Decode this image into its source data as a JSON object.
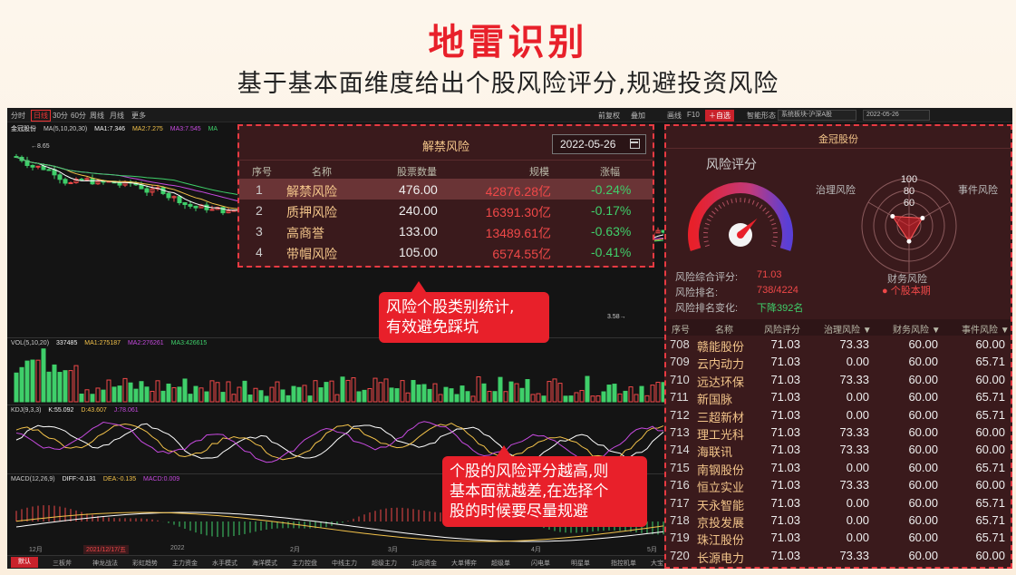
{
  "hero": {
    "title": "地雷识别",
    "subtitle": "基于基本面维度给出个股风险评分,规避投资风险"
  },
  "toolbar": {
    "left": [
      "分时",
      "日线",
      "30分",
      "60分",
      "周线",
      "月线",
      "更多"
    ],
    "active_index": 1,
    "right": [
      "前复权",
      "叠加",
      "画线",
      "F10",
      "自选",
      "智能形态"
    ],
    "board_select": "系统板块-沪深A股",
    "date": "2022-05-26"
  },
  "chart": {
    "stock_name": "金冠股份",
    "ma_legend": {
      "label": "MA(5,10,20,30)",
      "ma1": "MA1:7.346",
      "ma2": "MA2:7.275",
      "ma3": "MA3:7.545",
      "ma4": "MA"
    },
    "high_label": "8.65",
    "low_label": "3.58",
    "vol_legend": {
      "label": "VOL(5,10,20)",
      "value": "337485",
      "ma1": "MA1:275187",
      "ma2": "MA2:276261",
      "ma3": "MA3:426615"
    },
    "kdj_legend": {
      "label": "KDJ(9,3,3)",
      "k": "K:55.092",
      "d": "D:43.607",
      "j": "J:78.061"
    },
    "macd_legend": {
      "label": "MACD(12,26,9)",
      "diff": "DIFF:-0.131",
      "dea": "DEA:-0.135",
      "macd": "MACD:0.009"
    },
    "time_axis": [
      "12月",
      "2021/12/17/五",
      "2022",
      "2月",
      "3月",
      "4月",
      "5月"
    ],
    "colors": {
      "up": "#ef4848",
      "down": "#3fcf6a",
      "ma5": "#ffffff",
      "ma10": "#f3c24a",
      "ma20": "#c64adf",
      "ma30": "#3fcf6a"
    }
  },
  "bottom_tabs": [
    "默认",
    "三板斧",
    "神龙战法",
    "彩虹趋势",
    "主力资金",
    "水手模式",
    "海洋模式",
    "主力控盘",
    "中线主力",
    "超级主力",
    "北向资金",
    "大单博弈",
    "超级单",
    "闪电单",
    "明星单",
    "指控机单",
    "大宝"
  ],
  "unlock_popup": {
    "title": "解禁风险",
    "date": "2022-05-26",
    "headers": [
      "序号",
      "名称",
      "股票数量",
      "规模",
      "涨幅"
    ],
    "rows": [
      {
        "no": "1",
        "name": "解禁风险",
        "qty": "476.00",
        "scale": "42876.28亿",
        "chg": "-0.24%"
      },
      {
        "no": "2",
        "name": "质押风险",
        "qty": "240.00",
        "scale": "16391.30亿",
        "chg": "-0.17%"
      },
      {
        "no": "3",
        "name": "高商誉",
        "qty": "133.00",
        "scale": "13489.61亿",
        "chg": "-0.63%"
      },
      {
        "no": "4",
        "name": "带帽风险",
        "qty": "105.00",
        "scale": "6574.55亿",
        "chg": "-0.41%"
      }
    ]
  },
  "risk_panel": {
    "title": "金冠股份",
    "gauge_title": "风险评分",
    "gauge_value_pct": 0.71,
    "radar_ticks": [
      "100",
      "80",
      "60"
    ],
    "radar_axes": {
      "top_left": "治理风险",
      "top_right": "事件风险",
      "bottom": "财务风险"
    },
    "radar_values": {
      "governance": 73.33,
      "event": 60.0,
      "finance": 60.0
    },
    "score_label": "风险综合评分:",
    "score_value": "71.03",
    "rank_label": "风险排名:",
    "rank_value": "738/4224",
    "rank_change_label": "风险排名变化:",
    "rank_change_value": "下降392名",
    "period_label": "● 个股本期",
    "headers": [
      "序号",
      "名称",
      "风险评分",
      "治理风险 ▼",
      "财务风险 ▼",
      "事件风险 ▼"
    ],
    "rows": [
      {
        "no": "708",
        "name": "赣能股份",
        "score": "71.03",
        "gov": "73.33",
        "fin": "60.00",
        "evt": "60.00"
      },
      {
        "no": "709",
        "name": "云内动力",
        "score": "71.03",
        "gov": "0.00",
        "fin": "60.00",
        "evt": "65.71"
      },
      {
        "no": "710",
        "name": "远达环保",
        "score": "71.03",
        "gov": "73.33",
        "fin": "60.00",
        "evt": "60.00"
      },
      {
        "no": "711",
        "name": "新国脉",
        "score": "71.03",
        "gov": "0.00",
        "fin": "60.00",
        "evt": "65.71"
      },
      {
        "no": "712",
        "name": "三超新材",
        "score": "71.03",
        "gov": "0.00",
        "fin": "60.00",
        "evt": "65.71"
      },
      {
        "no": "713",
        "name": "理工光科",
        "score": "71.03",
        "gov": "73.33",
        "fin": "60.00",
        "evt": "60.00"
      },
      {
        "no": "714",
        "name": "海联讯",
        "score": "71.03",
        "gov": "73.33",
        "fin": "60.00",
        "evt": "60.00"
      },
      {
        "no": "715",
        "name": "南钢股份",
        "score": "71.03",
        "gov": "0.00",
        "fin": "60.00",
        "evt": "65.71"
      },
      {
        "no": "716",
        "name": "恒立实业",
        "score": "71.03",
        "gov": "73.33",
        "fin": "60.00",
        "evt": "60.00"
      },
      {
        "no": "717",
        "name": "天永智能",
        "score": "71.03",
        "gov": "0.00",
        "fin": "60.00",
        "evt": "65.71"
      },
      {
        "no": "718",
        "name": "京投发展",
        "score": "71.03",
        "gov": "0.00",
        "fin": "60.00",
        "evt": "65.71"
      },
      {
        "no": "719",
        "name": "珠江股份",
        "score": "71.03",
        "gov": "0.00",
        "fin": "60.00",
        "evt": "65.71"
      },
      {
        "no": "720",
        "name": "长源电力",
        "score": "71.03",
        "gov": "73.33",
        "fin": "60.00",
        "evt": "60.00"
      }
    ]
  },
  "callouts": {
    "c1_line1": "风险个股类别统计,",
    "c1_line2": "有效避免踩坑",
    "c2_line1": "个股的风险评分越高,则",
    "c2_line2": "基本面就越差,在选择个",
    "c2_line3": "股的时候要尽量规避"
  }
}
